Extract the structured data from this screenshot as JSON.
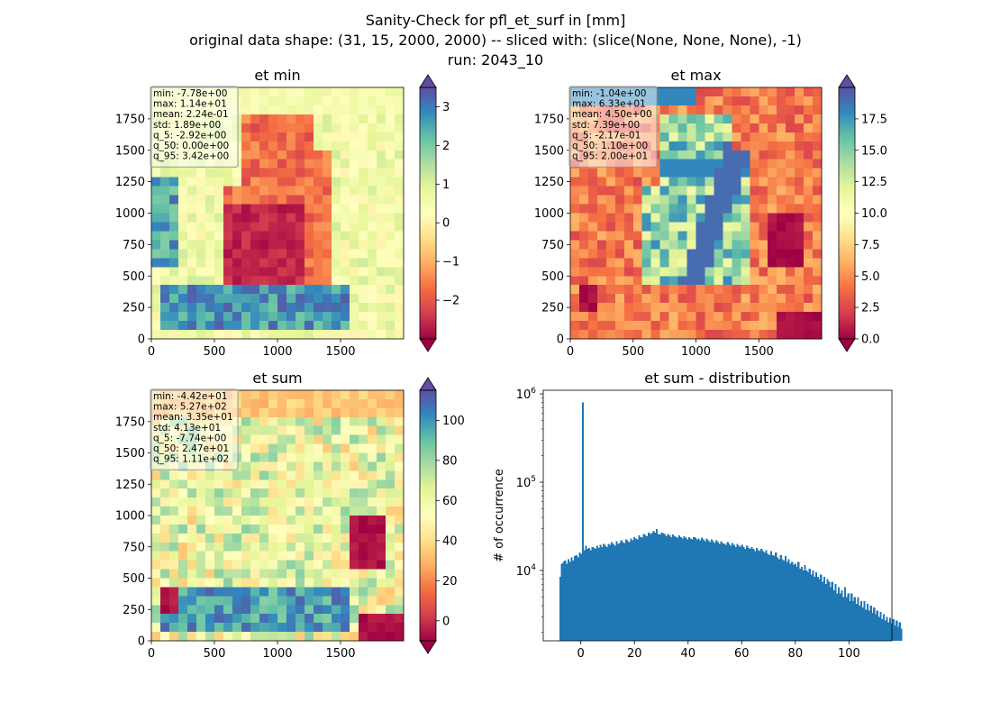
{
  "figure": {
    "title_lines": [
      "Sanity-Check for pfl_et_surf in [mm]",
      "original data shape: (31, 15, 2000, 2000) -- sliced with: (slice(None, None, None), -1)",
      "run: 2043_10"
    ]
  },
  "colormap": {
    "name": "Spectral",
    "stops": [
      "#9e0142",
      "#d53e4f",
      "#f46d43",
      "#fdae61",
      "#fee08b",
      "#ffffbf",
      "#e6f598",
      "#abdda4",
      "#66c2a5",
      "#3288bd",
      "#5e4fa2"
    ]
  },
  "chart_data": [
    {
      "type": "heatmap",
      "title": "et min",
      "xlim": [
        0,
        2000
      ],
      "ylim": [
        0,
        2000
      ],
      "xticks": [
        0,
        500,
        1000,
        1500
      ],
      "yticks": [
        0,
        250,
        500,
        750,
        1000,
        1250,
        1500,
        1750
      ],
      "colorbar": {
        "min": -3.0,
        "max": 3.5,
        "ticks": [
          -2,
          -1,
          0,
          1,
          2,
          3
        ],
        "tick_labels": [
          "−2",
          "−1",
          "0",
          "1",
          "2",
          "3"
        ],
        "extend": "both"
      },
      "stats": [
        "min: -7.78e+00",
        "max: 1.14e+01",
        "mean: 2.24e-01",
        "std: 1.89e+00",
        "q_5: -2.92e+00",
        "q_50: 0.00e+00",
        "q_95: 3.42e+00"
      ]
    },
    {
      "type": "heatmap",
      "title": "et max",
      "xlim": [
        0,
        2000
      ],
      "ylim": [
        0,
        2000
      ],
      "xticks": [
        0,
        500,
        1000,
        1500
      ],
      "yticks": [
        0,
        250,
        500,
        750,
        1000,
        1250,
        1500,
        1750
      ],
      "colorbar": {
        "min": 0,
        "max": 20.0,
        "ticks": [
          0,
          2.5,
          5,
          7.5,
          10,
          12.5,
          15,
          17.5
        ],
        "tick_labels": [
          "0.0",
          "2.5",
          "5.0",
          "7.5",
          "10.0",
          "12.5",
          "15.0",
          "17.5"
        ],
        "extend": "both"
      },
      "stats": [
        "min: -1.04e+00",
        "max: 6.33e+01",
        "mean: 4.50e+00",
        "std: 7.39e+00",
        "q_5: -2.17e-01",
        "q_50: 1.10e+00",
        "q_95: 2.00e+01"
      ]
    },
    {
      "type": "heatmap",
      "title": "et sum",
      "xlim": [
        0,
        2000
      ],
      "ylim": [
        0,
        2000
      ],
      "xticks": [
        0,
        500,
        1000,
        1500
      ],
      "yticks": [
        0,
        250,
        500,
        750,
        1000,
        1250,
        1500,
        1750
      ],
      "colorbar": {
        "min": -10,
        "max": 115,
        "ticks": [
          0,
          20,
          40,
          60,
          80,
          100
        ],
        "tick_labels": [
          "0",
          "20",
          "40",
          "60",
          "80",
          "100"
        ],
        "extend": "both"
      },
      "stats": [
        "min: -4.42e+01",
        "max: 5.27e+02",
        "mean: 3.35e+01",
        "std: 4.13e+01",
        "q_5: -7.74e+00",
        "q_50: 2.47e+01",
        "q_95: 1.11e+02"
      ]
    },
    {
      "type": "bar",
      "title": "et sum - distribution",
      "xlabel": "",
      "ylabel": "# of occurrence",
      "y_scale": "log",
      "xlim": [
        -14,
        116
      ],
      "ylim": [
        1600,
        1100000
      ],
      "xticks": [
        0,
        20,
        40,
        60,
        80,
        100
      ],
      "yticks": [
        10000,
        100000,
        1000000
      ],
      "ytick_labels": [
        "10^4",
        "10^5",
        "10^6"
      ],
      "color": "#1f77b4",
      "bin_start": -8,
      "bin_width": 0.6,
      "values": [
        8500,
        12000,
        12500,
        13000,
        12000,
        13500,
        12500,
        14000,
        13000,
        14500,
        15000,
        14000,
        16000,
        15500,
        800000,
        17000,
        19000,
        17500,
        18000,
        17000,
        18500,
        18000,
        17500,
        19000,
        18000,
        19500,
        18500,
        20000,
        19000,
        18500,
        20000,
        19500,
        21000,
        20000,
        19000,
        21500,
        20000,
        20500,
        22000,
        21000,
        20500,
        22500,
        21500,
        21000,
        23000,
        22000,
        24000,
        23000,
        22500,
        25000,
        24000,
        23500,
        26000,
        25000,
        24500,
        27000,
        25500,
        26500,
        28000,
        27000,
        29500,
        26000,
        25500,
        27000,
        26500,
        25500,
        24500,
        26000,
        25000,
        24000,
        25500,
        24500,
        24000,
        23500,
        25000,
        24000,
        23000,
        24500,
        23500,
        22500,
        24000,
        23000,
        22500,
        24000,
        23500,
        22500,
        23000,
        22000,
        23500,
        22500,
        21500,
        23000,
        22000,
        21000,
        22500,
        21500,
        20500,
        22000,
        21000,
        20000,
        21500,
        20500,
        20000,
        19500,
        21000,
        20000,
        19000,
        20500,
        19500,
        18500,
        20000,
        19000,
        18500,
        19500,
        18500,
        17500,
        19000,
        18000,
        17500,
        18500,
        17500,
        16500,
        18000,
        17000,
        16500,
        17500,
        16500,
        16000,
        17000,
        15500,
        15000,
        16500,
        15000,
        14500,
        16000,
        14000,
        13500,
        15000,
        13500,
        13000,
        14500,
        12500,
        13500,
        12000,
        12500,
        11500,
        12000,
        11000,
        12500,
        10500,
        11000,
        10000,
        11500,
        10000,
        9500,
        10500,
        9000,
        10000,
        8500,
        9500,
        8500,
        8000,
        9000,
        7500,
        8500,
        7000,
        8000,
        7500,
        6500,
        7500,
        6000,
        7000,
        5500,
        6500,
        5500,
        6000,
        5000,
        6500,
        5000,
        5500,
        4500,
        5500,
        4500,
        5000,
        4200,
        5000,
        4000,
        4500,
        3800,
        4500,
        3600,
        4200,
        3500,
        4000,
        3300,
        3800,
        3200,
        3500,
        3000,
        3400,
        2800,
        3200,
        2700,
        3000,
        2600,
        2900,
        2500,
        2800,
        2400,
        2700,
        2300,
        2600,
        2200
      ]
    }
  ]
}
